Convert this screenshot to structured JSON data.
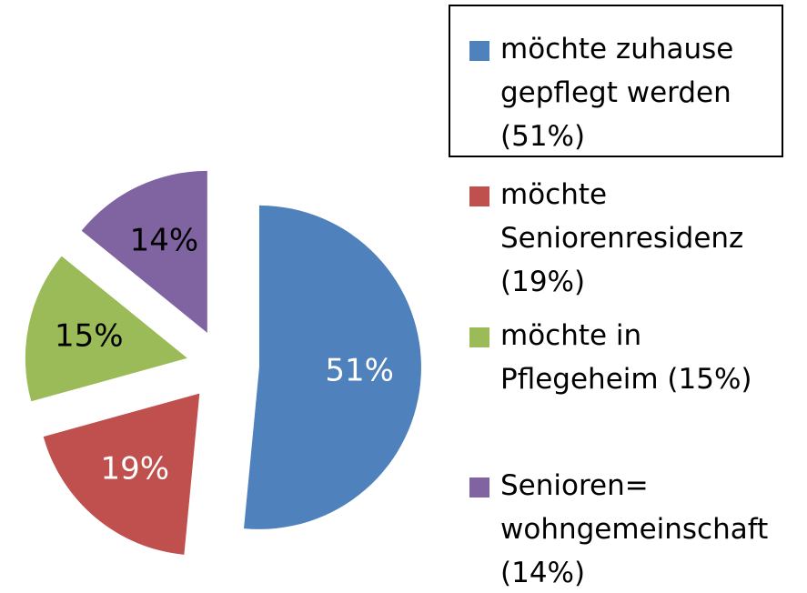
{
  "chart_data": {
    "type": "pie",
    "categories": [
      "möchte zuhause\ngepflegt werden\n(51%)",
      "möchte\nSeniorenresidenz\n(19%)",
      "möchte in\nPflegeheim (15%)",
      "Senioren=\nwohngemeinschaft\n(14%)"
    ],
    "values": [
      51,
      19,
      15,
      14
    ],
    "value_labels": [
      "51%",
      "19%",
      "15%",
      "14%"
    ],
    "colors": [
      "#4f81bd",
      "#c0504d",
      "#9bbb59",
      "#8064a2"
    ],
    "label_colors": [
      "#ffffff",
      "#ffffff",
      "#000000",
      "#000000"
    ],
    "legend": "right",
    "exploded": true
  }
}
